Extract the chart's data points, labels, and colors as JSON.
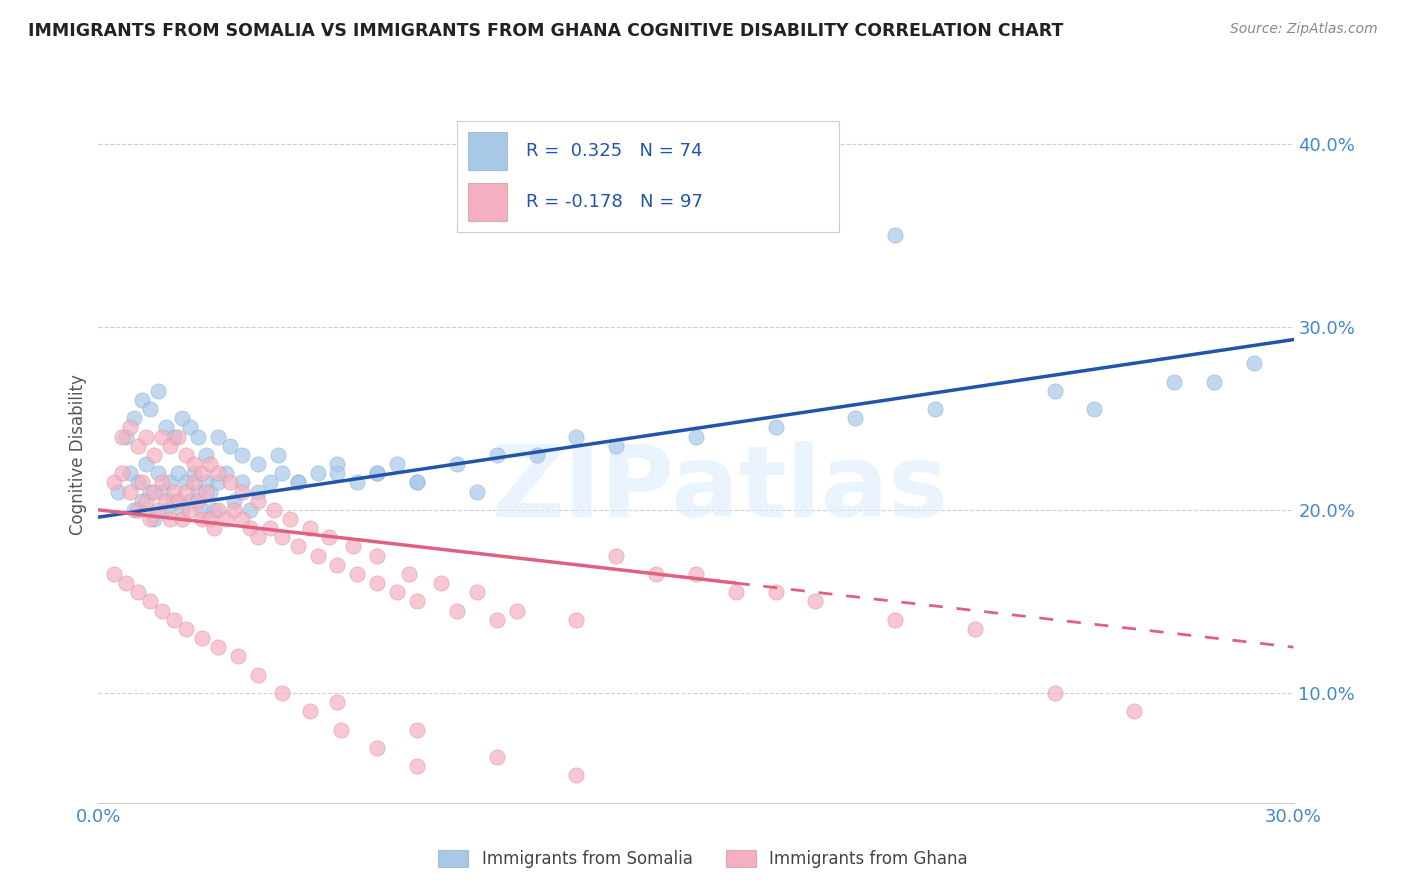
{
  "title": "IMMIGRANTS FROM SOMALIA VS IMMIGRANTS FROM GHANA COGNITIVE DISABILITY CORRELATION CHART",
  "source_text": "Source: ZipAtlas.com",
  "ylabel": "Cognitive Disability",
  "xlim": [
    0.0,
    0.3
  ],
  "ylim": [
    0.04,
    0.42
  ],
  "y_ticks": [
    0.1,
    0.2,
    0.3,
    0.4
  ],
  "y_tick_labels": [
    "10.0%",
    "20.0%",
    "30.0%",
    "40.0%"
  ],
  "x_ticks": [
    0.0,
    0.05,
    0.1,
    0.15,
    0.2,
    0.25,
    0.3
  ],
  "x_tick_labels": [
    "0.0%",
    "",
    "",
    "",
    "",
    "",
    "30.0%"
  ],
  "grid_color": "#d0d0d0",
  "background_color": "#ffffff",
  "somalia_color": "#a8c8e8",
  "ghana_color": "#f4b0c0",
  "somalia_line_color": "#2255aa",
  "ghana_line_color": "#e06080",
  "somalia_R": 0.325,
  "somalia_N": 74,
  "ghana_R": -0.178,
  "ghana_N": 97,
  "legend_label_somalia": "Immigrants from Somalia",
  "legend_label_ghana": "Immigrants from Ghana",
  "somalia_line_x0": 0.0,
  "somalia_line_y0": 0.196,
  "somalia_line_x1": 0.3,
  "somalia_line_y1": 0.293,
  "ghana_line_solid_x0": 0.0,
  "ghana_line_solid_y0": 0.2,
  "ghana_line_solid_x1": 0.16,
  "ghana_line_solid_y1": 0.16,
  "ghana_line_dash_x0": 0.16,
  "ghana_line_dash_y0": 0.16,
  "ghana_line_dash_x1": 0.3,
  "ghana_line_dash_y1": 0.125,
  "watermark_text": "ZIPatlas",
  "somalia_scatter_x": [
    0.005,
    0.008,
    0.009,
    0.01,
    0.011,
    0.012,
    0.013,
    0.014,
    0.015,
    0.016,
    0.017,
    0.018,
    0.019,
    0.02,
    0.021,
    0.022,
    0.023,
    0.024,
    0.025,
    0.026,
    0.027,
    0.028,
    0.029,
    0.03,
    0.032,
    0.034,
    0.036,
    0.038,
    0.04,
    0.043,
    0.046,
    0.05,
    0.055,
    0.06,
    0.065,
    0.07,
    0.075,
    0.08,
    0.09,
    0.1,
    0.11,
    0.12,
    0.007,
    0.009,
    0.011,
    0.013,
    0.015,
    0.017,
    0.019,
    0.021,
    0.023,
    0.025,
    0.027,
    0.03,
    0.033,
    0.036,
    0.04,
    0.045,
    0.05,
    0.06,
    0.07,
    0.08,
    0.095,
    0.13,
    0.15,
    0.17,
    0.19,
    0.21,
    0.24,
    0.27,
    0.2,
    0.25,
    0.28,
    0.29
  ],
  "somalia_scatter_y": [
    0.21,
    0.22,
    0.2,
    0.215,
    0.205,
    0.225,
    0.21,
    0.195,
    0.22,
    0.21,
    0.2,
    0.215,
    0.205,
    0.22,
    0.2,
    0.215,
    0.205,
    0.22,
    0.21,
    0.2,
    0.215,
    0.21,
    0.2,
    0.215,
    0.22,
    0.205,
    0.215,
    0.2,
    0.21,
    0.215,
    0.22,
    0.215,
    0.22,
    0.225,
    0.215,
    0.22,
    0.225,
    0.215,
    0.225,
    0.23,
    0.23,
    0.24,
    0.24,
    0.25,
    0.26,
    0.255,
    0.265,
    0.245,
    0.24,
    0.25,
    0.245,
    0.24,
    0.23,
    0.24,
    0.235,
    0.23,
    0.225,
    0.23,
    0.215,
    0.22,
    0.22,
    0.215,
    0.21,
    0.235,
    0.24,
    0.245,
    0.25,
    0.255,
    0.265,
    0.27,
    0.35,
    0.255,
    0.27,
    0.28
  ],
  "ghana_scatter_x": [
    0.004,
    0.006,
    0.008,
    0.01,
    0.011,
    0.012,
    0.013,
    0.014,
    0.015,
    0.016,
    0.017,
    0.018,
    0.019,
    0.02,
    0.021,
    0.022,
    0.023,
    0.024,
    0.025,
    0.026,
    0.027,
    0.028,
    0.029,
    0.03,
    0.032,
    0.034,
    0.036,
    0.038,
    0.04,
    0.043,
    0.046,
    0.05,
    0.055,
    0.06,
    0.065,
    0.07,
    0.075,
    0.08,
    0.09,
    0.1,
    0.006,
    0.008,
    0.01,
    0.012,
    0.014,
    0.016,
    0.018,
    0.02,
    0.022,
    0.024,
    0.026,
    0.028,
    0.03,
    0.033,
    0.036,
    0.04,
    0.044,
    0.048,
    0.053,
    0.058,
    0.064,
    0.07,
    0.078,
    0.086,
    0.095,
    0.105,
    0.12,
    0.004,
    0.007,
    0.01,
    0.013,
    0.016,
    0.019,
    0.022,
    0.026,
    0.03,
    0.035,
    0.04,
    0.046,
    0.053,
    0.061,
    0.07,
    0.08,
    0.14,
    0.16,
    0.18,
    0.2,
    0.22,
    0.13,
    0.15,
    0.17,
    0.06,
    0.08,
    0.1,
    0.12,
    0.24,
    0.26
  ],
  "ghana_scatter_y": [
    0.215,
    0.22,
    0.21,
    0.2,
    0.215,
    0.205,
    0.195,
    0.21,
    0.2,
    0.215,
    0.205,
    0.195,
    0.21,
    0.205,
    0.195,
    0.21,
    0.2,
    0.215,
    0.205,
    0.195,
    0.21,
    0.195,
    0.19,
    0.2,
    0.195,
    0.2,
    0.195,
    0.19,
    0.185,
    0.19,
    0.185,
    0.18,
    0.175,
    0.17,
    0.165,
    0.16,
    0.155,
    0.15,
    0.145,
    0.14,
    0.24,
    0.245,
    0.235,
    0.24,
    0.23,
    0.24,
    0.235,
    0.24,
    0.23,
    0.225,
    0.22,
    0.225,
    0.22,
    0.215,
    0.21,
    0.205,
    0.2,
    0.195,
    0.19,
    0.185,
    0.18,
    0.175,
    0.165,
    0.16,
    0.155,
    0.145,
    0.14,
    0.165,
    0.16,
    0.155,
    0.15,
    0.145,
    0.14,
    0.135,
    0.13,
    0.125,
    0.12,
    0.11,
    0.1,
    0.09,
    0.08,
    0.07,
    0.06,
    0.165,
    0.155,
    0.15,
    0.14,
    0.135,
    0.175,
    0.165,
    0.155,
    0.095,
    0.08,
    0.065,
    0.055,
    0.1,
    0.09
  ]
}
